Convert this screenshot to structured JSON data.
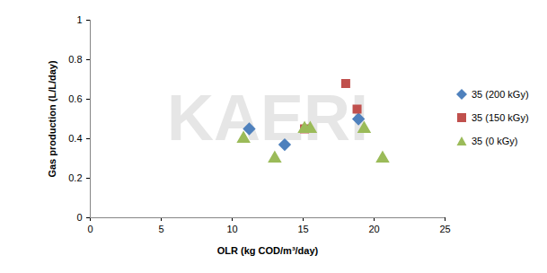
{
  "chart_data": {
    "type": "scatter",
    "watermark": "KAERI",
    "x_label": "OLR (kg COD/m³/day)",
    "y_label": "Gas production (L/L/day)",
    "xlim": [
      0,
      25
    ],
    "xticks": [
      0,
      5,
      10,
      15,
      20,
      25
    ],
    "ylim": [
      0,
      1
    ],
    "yticks": [
      0,
      0.2,
      0.4,
      0.6,
      0.8,
      1
    ],
    "grid": false,
    "legend": "right",
    "series": [
      {
        "name": "35 (200 kGy)",
        "color": "#4f81bd",
        "marker": "diamond",
        "x": [
          11.2,
          13.7,
          18.9
        ],
        "values": [
          0.45,
          0.37,
          0.5
        ]
      },
      {
        "name": "35 (150 kGy)",
        "color": "#c0504d",
        "marker": "square",
        "x": [
          15.1,
          18.0,
          18.8
        ],
        "values": [
          0.45,
          0.68,
          0.55
        ]
      },
      {
        "name": "35 (0 kGy)",
        "color": "#9bbb59",
        "marker": "triangle",
        "x": [
          10.8,
          13.0,
          15.1,
          15.5,
          19.3,
          20.6
        ],
        "values": [
          0.4,
          0.3,
          0.45,
          0.45,
          0.45,
          0.3
        ]
      }
    ]
  }
}
